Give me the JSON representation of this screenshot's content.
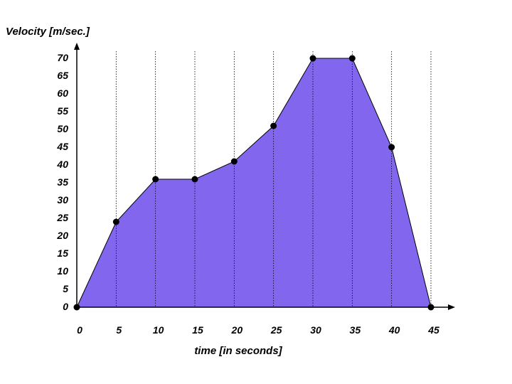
{
  "chart_data": {
    "type": "area",
    "ylabel": "Velocity [m/sec.]",
    "xlabel": "time [in seconds]",
    "x": [
      0,
      5,
      10,
      15,
      20,
      25,
      30,
      35,
      40,
      45
    ],
    "y": [
      0,
      24,
      36,
      36,
      41,
      51,
      70,
      70,
      45,
      0
    ],
    "x_ticks": [
      "0",
      "5",
      "10",
      "15",
      "20",
      "25",
      "30",
      "35",
      "40",
      "45"
    ],
    "y_ticks": [
      "0",
      "5",
      "10",
      "15",
      "20",
      "25",
      "30",
      "35",
      "40",
      "45",
      "50",
      "55",
      "60",
      "65",
      "70"
    ],
    "xlim": [
      0,
      45
    ],
    "ylim": [
      0,
      70
    ],
    "fill_color": "#8267ee",
    "grid": "vertical dotted lines at x ticks"
  }
}
